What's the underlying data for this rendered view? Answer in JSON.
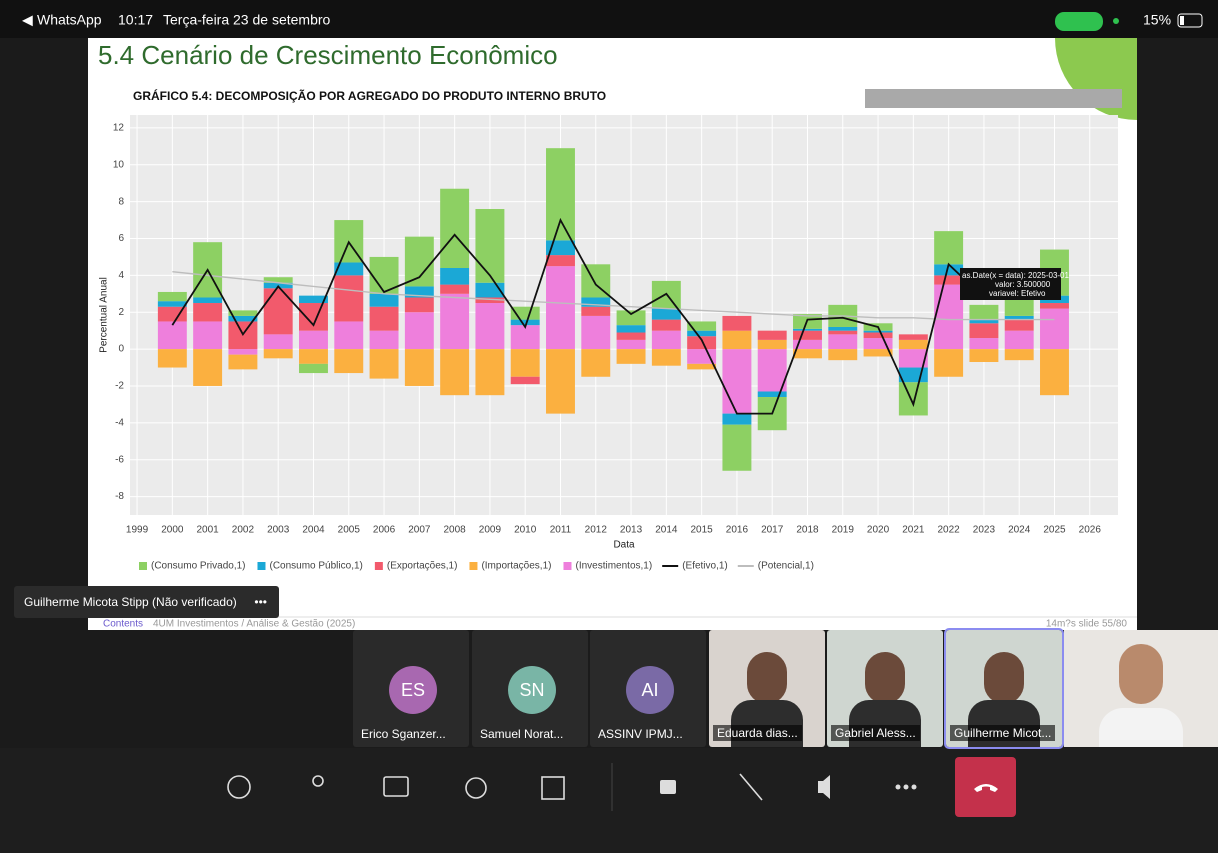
{
  "status_bar": {
    "app": "WhatsApp",
    "time": "10:17",
    "date": "Terça-feira 23 de setembro",
    "battery": "15%"
  },
  "slide": {
    "title": "5.4 Cenário de Crescimento Econômico",
    "footer_left": "Contents",
    "footer_center": "4UM Investimentos / Análise & Gestão (2025)",
    "footer_right": "14m?s slide 55/80"
  },
  "chart_data": {
    "type": "bar",
    "stacked": true,
    "title": "GRÁFICO 5.4: DECOMPOSIÇÃO POR AGREGADO DO PRODUTO INTERNO BRUTO",
    "x_label": "Data",
    "y_label": "Percentual Anual",
    "x": [
      2000,
      2001,
      2002,
      2003,
      2004,
      2005,
      2006,
      2007,
      2008,
      2009,
      2010,
      2011,
      2012,
      2013,
      2014,
      2015,
      2016,
      2017,
      2018,
      2019,
      2020,
      2021,
      2022,
      2023,
      2024,
      2025
    ],
    "xlim": [
      1998.8,
      2026.8
    ],
    "xticks": [
      1999,
      2000,
      2001,
      2002,
      2003,
      2004,
      2005,
      2006,
      2007,
      2008,
      2009,
      2010,
      2011,
      2012,
      2013,
      2014,
      2015,
      2016,
      2017,
      2018,
      2019,
      2020,
      2021,
      2022,
      2023,
      2024,
      2025,
      2026
    ],
    "ylim": [
      -9,
      12.7
    ],
    "yticks": [
      -8,
      -6,
      -4,
      -2,
      0,
      2,
      4,
      6,
      8,
      10,
      12
    ],
    "grid": true,
    "series": [
      {
        "name": "(Consumo Privado,1)",
        "color": "#8dd063",
        "values": [
          0.5,
          3.0,
          0.3,
          0.3,
          -0.5,
          2.3,
          2.0,
          2.7,
          4.3,
          4.0,
          0.7,
          5.0,
          1.8,
          0.8,
          1.5,
          0.5,
          -2.5,
          -1.8,
          0.8,
          1.2,
          0.4,
          -1.8,
          1.8,
          0.8,
          1.0,
          2.5
        ]
      },
      {
        "name": "(Consumo Público,1)",
        "color": "#1ba8d6",
        "values": [
          0.3,
          0.3,
          0.3,
          0.3,
          0.4,
          0.7,
          0.7,
          0.6,
          0.9,
          0.8,
          0.3,
          0.8,
          0.5,
          0.4,
          0.6,
          0.3,
          -0.6,
          -0.3,
          0.1,
          0.2,
          0.1,
          -0.8,
          0.6,
          0.2,
          0.2,
          0.4
        ]
      },
      {
        "name": "(Exportações,1)",
        "color": "#f25a6c",
        "values": [
          0.8,
          1.0,
          1.5,
          2.5,
          1.5,
          2.5,
          1.3,
          0.8,
          0.5,
          0.3,
          -0.4,
          0.6,
          0.5,
          0.4,
          0.6,
          0.7,
          0.8,
          0.5,
          0.5,
          0.2,
          0.3,
          0.3,
          0.5,
          0.8,
          0.6,
          0.3
        ]
      },
      {
        "name": "(Importações,1)",
        "color": "#fbb040",
        "values": [
          -1.0,
          -2.0,
          -0.8,
          -0.5,
          -0.8,
          -1.3,
          -1.6,
          -2.0,
          -2.5,
          -2.5,
          -1.5,
          -3.5,
          -1.5,
          -0.8,
          -0.9,
          -0.3,
          1.0,
          0.5,
          -0.5,
          -0.6,
          -0.4,
          0.5,
          -1.5,
          -0.7,
          -0.6,
          -2.5
        ]
      },
      {
        "name": "(Investimentos,1)",
        "color": "#ee7fdc",
        "values": [
          1.5,
          1.5,
          -0.3,
          0.8,
          1.0,
          1.5,
          1.0,
          2.0,
          3.0,
          2.5,
          1.3,
          4.5,
          1.8,
          0.5,
          1.0,
          -0.8,
          -3.5,
          -2.3,
          0.5,
          0.8,
          0.6,
          -1.0,
          3.5,
          0.6,
          1.0,
          2.2
        ]
      },
      {
        "name": "(Efetivo,1)",
        "type": "line",
        "color": "#111111",
        "values": [
          1.3,
          4.3,
          0.8,
          3.4,
          1.3,
          5.8,
          3.1,
          3.9,
          6.2,
          4.0,
          1.2,
          7.0,
          3.5,
          1.9,
          3.0,
          0.5,
          -3.5,
          -3.5,
          1.6,
          1.7,
          1.2,
          -3.0,
          4.6,
          2.8,
          3.0,
          3.5
        ]
      },
      {
        "name": "(Potencial,1)",
        "type": "line",
        "color": "#bdbdbd",
        "values": [
          4.2,
          4.0,
          3.8,
          3.6,
          3.4,
          3.2,
          3.0,
          2.9,
          2.8,
          2.7,
          2.6,
          2.5,
          2.4,
          2.3,
          2.2,
          2.1,
          2.0,
          1.9,
          1.8,
          1.8,
          1.7,
          1.7,
          1.6,
          1.6,
          1.6,
          1.6
        ]
      }
    ],
    "tooltip": [
      "as.Date(x = data): 2025-03-01",
      "valor:  3.500000",
      "variavel: Efetivo"
    ]
  },
  "speaker_label": "Guilherme Micota Stipp (Não verificado)",
  "participants": [
    {
      "initials": "ES",
      "name": "Erico Sganzer..."
    },
    {
      "initials": "SN",
      "name": "Samuel Norat..."
    },
    {
      "initials": "AI",
      "name": "ASSINV IPMJ..."
    },
    {
      "name": "Eduarda dias..."
    },
    {
      "name": "Gabriel Aless..."
    },
    {
      "name": "Guilherme Micot..."
    }
  ]
}
